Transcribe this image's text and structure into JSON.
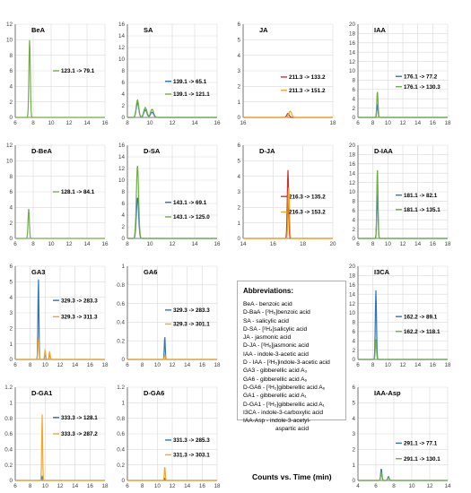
{
  "footer_label": "Counts vs. Time (min)",
  "abbreviations": {
    "title": "Abbreviations:",
    "lines": [
      "BeA - benzoic acid",
      "D-BaA - [²H₅]benzoic acid",
      "SA - salicylic acid",
      "D-SA - [²H₄]salicylic acid",
      "JA - jasmonic acid",
      "D-JA - [²H₆]jasmonic acid",
      "IAA - indole-3-acetic acid",
      "D - IAA - [²H₅]indole-3-acetic acid",
      "GA3 - gibberellic acid A₃",
      "GA6 - gibberellic acid A₆",
      "D-GA6 - [²H₂]gibberellic acid A₆",
      "GA1 - gibberellic acid A₁",
      "D-GA1 - [²H₂]gibberellic acid A₁",
      "I3CA - indole-3-carboxylic acid",
      "IAA-Asp - indole-3-acetyl-",
      "aspartic acid"
    ]
  },
  "colors": {
    "blue": "#2e75b6",
    "orange": "#f5a623",
    "green": "#70ad47",
    "red": "#c0392b",
    "grid": "#d9d9d9",
    "axis": "#595959"
  },
  "chart_data": [
    {
      "type": "line",
      "title": "BeA",
      "xlim": [
        6,
        16
      ],
      "xticks": [
        6,
        8,
        10,
        12,
        14,
        16
      ],
      "ylim": [
        0,
        12
      ],
      "yticks": [
        0,
        2,
        4,
        6,
        8,
        10,
        12
      ],
      "series": [
        {
          "name": "123.1 -> 79.1",
          "color": "green",
          "peaks": [
            {
              "x": 7.6,
              "h": 10.0,
              "w": 0.17
            }
          ],
          "label_y": 6.0
        }
      ]
    },
    {
      "type": "line",
      "title": "SA",
      "xlim": [
        8,
        16
      ],
      "xticks": [
        8,
        10,
        12,
        14,
        16
      ],
      "ylim": [
        0,
        16
      ],
      "yticks": [
        0,
        2,
        4,
        6,
        8,
        10,
        12,
        14,
        16
      ],
      "series": [
        {
          "name": "139.1 -> 65.1",
          "color": "blue",
          "peaks": [
            {
              "x": 8.9,
              "h": 2.5,
              "w": 0.25
            },
            {
              "x": 9.6,
              "h": 1.3,
              "w": 0.3
            },
            {
              "x": 10.2,
              "h": 0.9,
              "w": 0.3
            }
          ],
          "label_y": 6.2
        },
        {
          "name": "139.1 -> 121.1",
          "color": "green",
          "peaks": [
            {
              "x": 8.9,
              "h": 3.0,
              "w": 0.25
            },
            {
              "x": 9.6,
              "h": 1.7,
              "w": 0.3
            },
            {
              "x": 10.2,
              "h": 1.4,
              "w": 0.3
            }
          ],
          "label_y": 4.0
        }
      ]
    },
    {
      "type": "line",
      "title": "JA",
      "xlim": [
        16,
        18
      ],
      "xticks": [
        16,
        18
      ],
      "ylim": [
        0,
        6
      ],
      "yticks": [
        0,
        1,
        2,
        3,
        4,
        5,
        6
      ],
      "series": [
        {
          "name": "211.3 -> 133.2",
          "color": "red",
          "peaks": [
            {
              "x": 17.0,
              "h": 0.25,
              "w": 0.06
            }
          ],
          "label_y": 2.6
        },
        {
          "name": "211.3 -> 151.2",
          "color": "orange",
          "peaks": [
            {
              "x": 17.05,
              "h": 0.4,
              "w": 0.07
            }
          ],
          "label_y": 1.75
        }
      ]
    },
    {
      "type": "line",
      "title": "IAA",
      "xlim": [
        6,
        18
      ],
      "xticks": [
        6,
        8,
        10,
        12,
        14,
        16,
        18
      ],
      "ylim": [
        0,
        20
      ],
      "yticks": [
        0,
        2,
        4,
        6,
        8,
        10,
        12,
        14,
        16,
        18,
        20
      ],
      "series": [
        {
          "name": "176.1 -> 77.2",
          "color": "blue",
          "peaks": [
            {
              "x": 8.6,
              "h": 2.7,
              "w": 0.18
            }
          ],
          "label_y": 8.8
        },
        {
          "name": "176.1 -> 130.3",
          "color": "green",
          "peaks": [
            {
              "x": 8.6,
              "h": 5.6,
              "w": 0.18
            }
          ],
          "label_y": 6.6
        }
      ]
    },
    {
      "type": "line",
      "title": "D-BeA",
      "xlim": [
        6,
        16
      ],
      "xticks": [
        6,
        8,
        10,
        12,
        14,
        16
      ],
      "ylim": [
        0,
        12
      ],
      "yticks": [
        0,
        2,
        4,
        6,
        8,
        10,
        12
      ],
      "series": [
        {
          "name": "128.1 -> 84.1",
          "color": "green",
          "peaks": [
            {
              "x": 7.5,
              "h": 3.8,
              "w": 0.16
            }
          ],
          "label_y": 6.0
        }
      ]
    },
    {
      "type": "line",
      "title": "D-SA",
      "xlim": [
        8,
        16
      ],
      "xticks": [
        8,
        10,
        12,
        14,
        16
      ],
      "ylim": [
        0,
        16
      ],
      "yticks": [
        0,
        2,
        4,
        6,
        8,
        10,
        12,
        14,
        16
      ],
      "series": [
        {
          "name": "143.1 -> 69.1",
          "color": "blue",
          "peaks": [
            {
              "x": 8.9,
              "h": 7.0,
              "w": 0.22
            }
          ],
          "label_y": 6.2
        },
        {
          "name": "143.1 -> 125.0",
          "color": "green",
          "peaks": [
            {
              "x": 8.9,
              "h": 12.5,
              "w": 0.22
            }
          ],
          "label_y": 3.7
        }
      ]
    },
    {
      "type": "line",
      "title": "D-JA",
      "xlim": [
        14,
        20
      ],
      "xticks": [
        14,
        16,
        18,
        20
      ],
      "ylim": [
        0,
        6
      ],
      "yticks": [
        0,
        1,
        2,
        3,
        4,
        5,
        6
      ],
      "series": [
        {
          "name": "216.3 -> 135.2",
          "color": "red",
          "peaks": [
            {
              "x": 17.0,
              "h": 4.4,
              "w": 0.1
            }
          ],
          "label_y": 2.7
        },
        {
          "name": "216.3 -> 153.2",
          "color": "orange",
          "peaks": [
            {
              "x": 17.05,
              "h": 3.3,
              "w": 0.1
            }
          ],
          "label_y": 1.7
        }
      ]
    },
    {
      "type": "line",
      "title": "D-IAA",
      "xlim": [
        6,
        18
      ],
      "xticks": [
        6,
        8,
        10,
        12,
        14,
        16,
        18
      ],
      "ylim": [
        0,
        20
      ],
      "yticks": [
        0,
        2,
        4,
        6,
        8,
        10,
        12,
        14,
        16,
        18,
        20
      ],
      "series": [
        {
          "name": "181.1 -> 82.1",
          "color": "blue",
          "peaks": [
            {
              "x": 8.6,
              "h": 9.7,
              "w": 0.18
            }
          ],
          "label_y": 9.3
        },
        {
          "name": "181.1 -> 135.1",
          "color": "green",
          "peaks": [
            {
              "x": 8.6,
              "h": 15.0,
              "w": 0.18
            }
          ],
          "label_y": 6.2
        }
      ]
    },
    {
      "type": "line",
      "title": "GA3",
      "xlim": [
        6,
        18
      ],
      "xticks": [
        6,
        8,
        10,
        12,
        14,
        16,
        18
      ],
      "ylim": [
        0,
        6
      ],
      "yticks": [
        0,
        1,
        2,
        3,
        4,
        5,
        6
      ],
      "series": [
        {
          "name": "329.3 -> 283.3",
          "color": "blue",
          "peaks": [
            {
              "x": 9.1,
              "h": 5.2,
              "w": 0.14
            },
            {
              "x": 10.0,
              "h": 0.4,
              "w": 0.15
            },
            {
              "x": 10.6,
              "h": 0.35,
              "w": 0.15
            }
          ],
          "label_y": 3.8
        },
        {
          "name": "329.3 -> 311.3",
          "color": "orange",
          "peaks": [
            {
              "x": 9.1,
              "h": 1.4,
              "w": 0.15
            },
            {
              "x": 10.0,
              "h": 0.6,
              "w": 0.15
            },
            {
              "x": 10.6,
              "h": 0.5,
              "w": 0.15
            }
          ],
          "label_y": 2.75
        }
      ]
    },
    {
      "type": "line",
      "title": "GA6",
      "xlim": [
        6,
        18
      ],
      "xticks": [
        6,
        8,
        10,
        12,
        14,
        16,
        18
      ],
      "ylim": [
        0,
        1.0
      ],
      "yticks": [
        0,
        0.2,
        0.4,
        0.6,
        0.8,
        1.0
      ],
      "series": [
        {
          "name": "329.3 -> 283.3",
          "color": "blue",
          "peaks": [
            {
              "x": 11.0,
              "h": 0.25,
              "w": 0.13
            }
          ],
          "label_y": 0.53
        },
        {
          "name": "329.3 -> 301.1",
          "color": "orange",
          "peaks": [
            {
              "x": 11.0,
              "h": 0.05,
              "w": 0.14
            }
          ],
          "label_y": 0.38
        }
      ]
    },
    {
      "type": "line",
      "title": "I3CA",
      "xlim": [
        6,
        18
      ],
      "xticks": [
        6,
        8,
        10,
        12,
        14,
        16,
        18
      ],
      "ylim": [
        0,
        20
      ],
      "yticks": [
        0,
        2,
        4,
        6,
        8,
        10,
        12,
        14,
        16,
        18,
        20
      ],
      "series": [
        {
          "name": "162.2 -> 89.1",
          "color": "blue",
          "peaks": [
            {
              "x": 8.4,
              "h": 14.8,
              "w": 0.17
            }
          ],
          "label_y": 9.2
        },
        {
          "name": "162.2 -> 118.1",
          "color": "green",
          "peaks": [
            {
              "x": 8.4,
              "h": 4.3,
              "w": 0.17
            }
          ],
          "label_y": 6.0
        }
      ]
    },
    {
      "type": "line",
      "title": "D-GA1",
      "xlim": [
        6,
        18
      ],
      "xticks": [
        6,
        8,
        10,
        12,
        14,
        16,
        18
      ],
      "ylim": [
        0,
        1.2
      ],
      "yticks": [
        0,
        0.2,
        0.4,
        0.6,
        0.8,
        1.0,
        1.2
      ],
      "series": [
        {
          "name": "333.3 -> 128.1",
          "color": "blue",
          "peaks": [
            {
              "x": 9.6,
              "h": 0.05,
              "w": 0.15
            }
          ],
          "label_y": 0.81
        },
        {
          "name": "333.3 -> 287.2",
          "color": "orange",
          "peaks": [
            {
              "x": 9.6,
              "h": 0.85,
              "w": 0.13
            }
          ],
          "label_y": 0.6
        }
      ]
    },
    {
      "type": "line",
      "title": "D-GA6",
      "xlim": [
        6,
        18
      ],
      "xticks": [
        6,
        8,
        10,
        12,
        14,
        16,
        18
      ],
      "ylim": [
        0,
        1.2
      ],
      "yticks": [
        0,
        0.2,
        0.4,
        0.6,
        0.8,
        1.0,
        1.2
      ],
      "series": [
        {
          "name": "331.3 -> 285.3",
          "color": "blue",
          "peaks": [
            {
              "x": 11.0,
              "h": 0.03,
              "w": 0.13
            }
          ],
          "label_y": 0.52
        },
        {
          "name": "331.3 -> 303.1",
          "color": "orange",
          "peaks": [
            {
              "x": 11.0,
              "h": 0.18,
              "w": 0.13
            }
          ],
          "label_y": 0.33
        }
      ]
    },
    {
      "type": "line",
      "title": "IAA-Asp",
      "xlim": [
        4,
        14
      ],
      "xticks": [
        4,
        6,
        8,
        10,
        12,
        14
      ],
      "ylim": [
        0,
        6
      ],
      "yticks": [
        0,
        1,
        2,
        3,
        4,
        5,
        6
      ],
      "series": [
        {
          "name": "291.1 -> 77.1",
          "color": "blue",
          "peaks": [
            {
              "x": 6.6,
              "h": 0.75,
              "w": 0.15
            },
            {
              "x": 7.4,
              "h": 0.25,
              "w": 0.18
            }
          ],
          "label_y": 2.4
        },
        {
          "name": "291.1 -> 130.1",
          "color": "green",
          "peaks": [
            {
              "x": 6.6,
              "h": 0.5,
              "w": 0.15
            },
            {
              "x": 7.4,
              "h": 0.2,
              "w": 0.18
            }
          ],
          "label_y": 1.4
        }
      ]
    }
  ]
}
